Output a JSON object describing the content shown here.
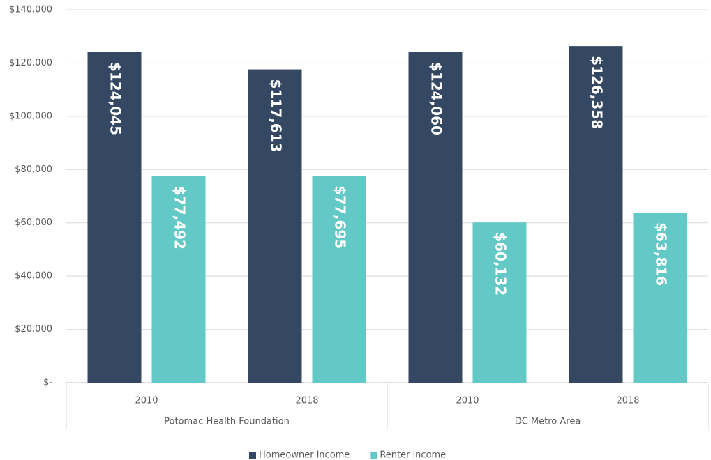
{
  "chart_data": {
    "type": "bar",
    "groups": [
      {
        "label": "Potomac Health Foundation",
        "categories": [
          "2010",
          "2018"
        ]
      },
      {
        "label": "DC Metro Area",
        "categories": [
          "2010",
          "2018"
        ]
      }
    ],
    "series": [
      {
        "name": "Homeowner income",
        "color": "#344863",
        "values": [
          124045,
          117613,
          124060,
          126358
        ],
        "value_labels": [
          "$124,045",
          "$117,613",
          "$124,060",
          "$126,358"
        ]
      },
      {
        "name": "Renter income",
        "color": "#62c9c6",
        "values": [
          77492,
          77695,
          60132,
          63816
        ],
        "value_labels": [
          "$77,492",
          "$77,695",
          "$60,132",
          "$63,816"
        ]
      }
    ],
    "ylim": [
      0,
      140000
    ],
    "yticks": [
      {
        "value": 0,
        "label": "$-"
      },
      {
        "value": 20000,
        "label": "$20,000"
      },
      {
        "value": 40000,
        "label": "$40,000"
      },
      {
        "value": 60000,
        "label": "$60,000"
      },
      {
        "value": 80000,
        "label": "$80,000"
      },
      {
        "value": 100000,
        "label": "$100,000"
      },
      {
        "value": 120000,
        "label": "$120,000"
      },
      {
        "value": 140000,
        "label": "$140,000"
      }
    ],
    "grid": true,
    "legend": "bottom"
  }
}
